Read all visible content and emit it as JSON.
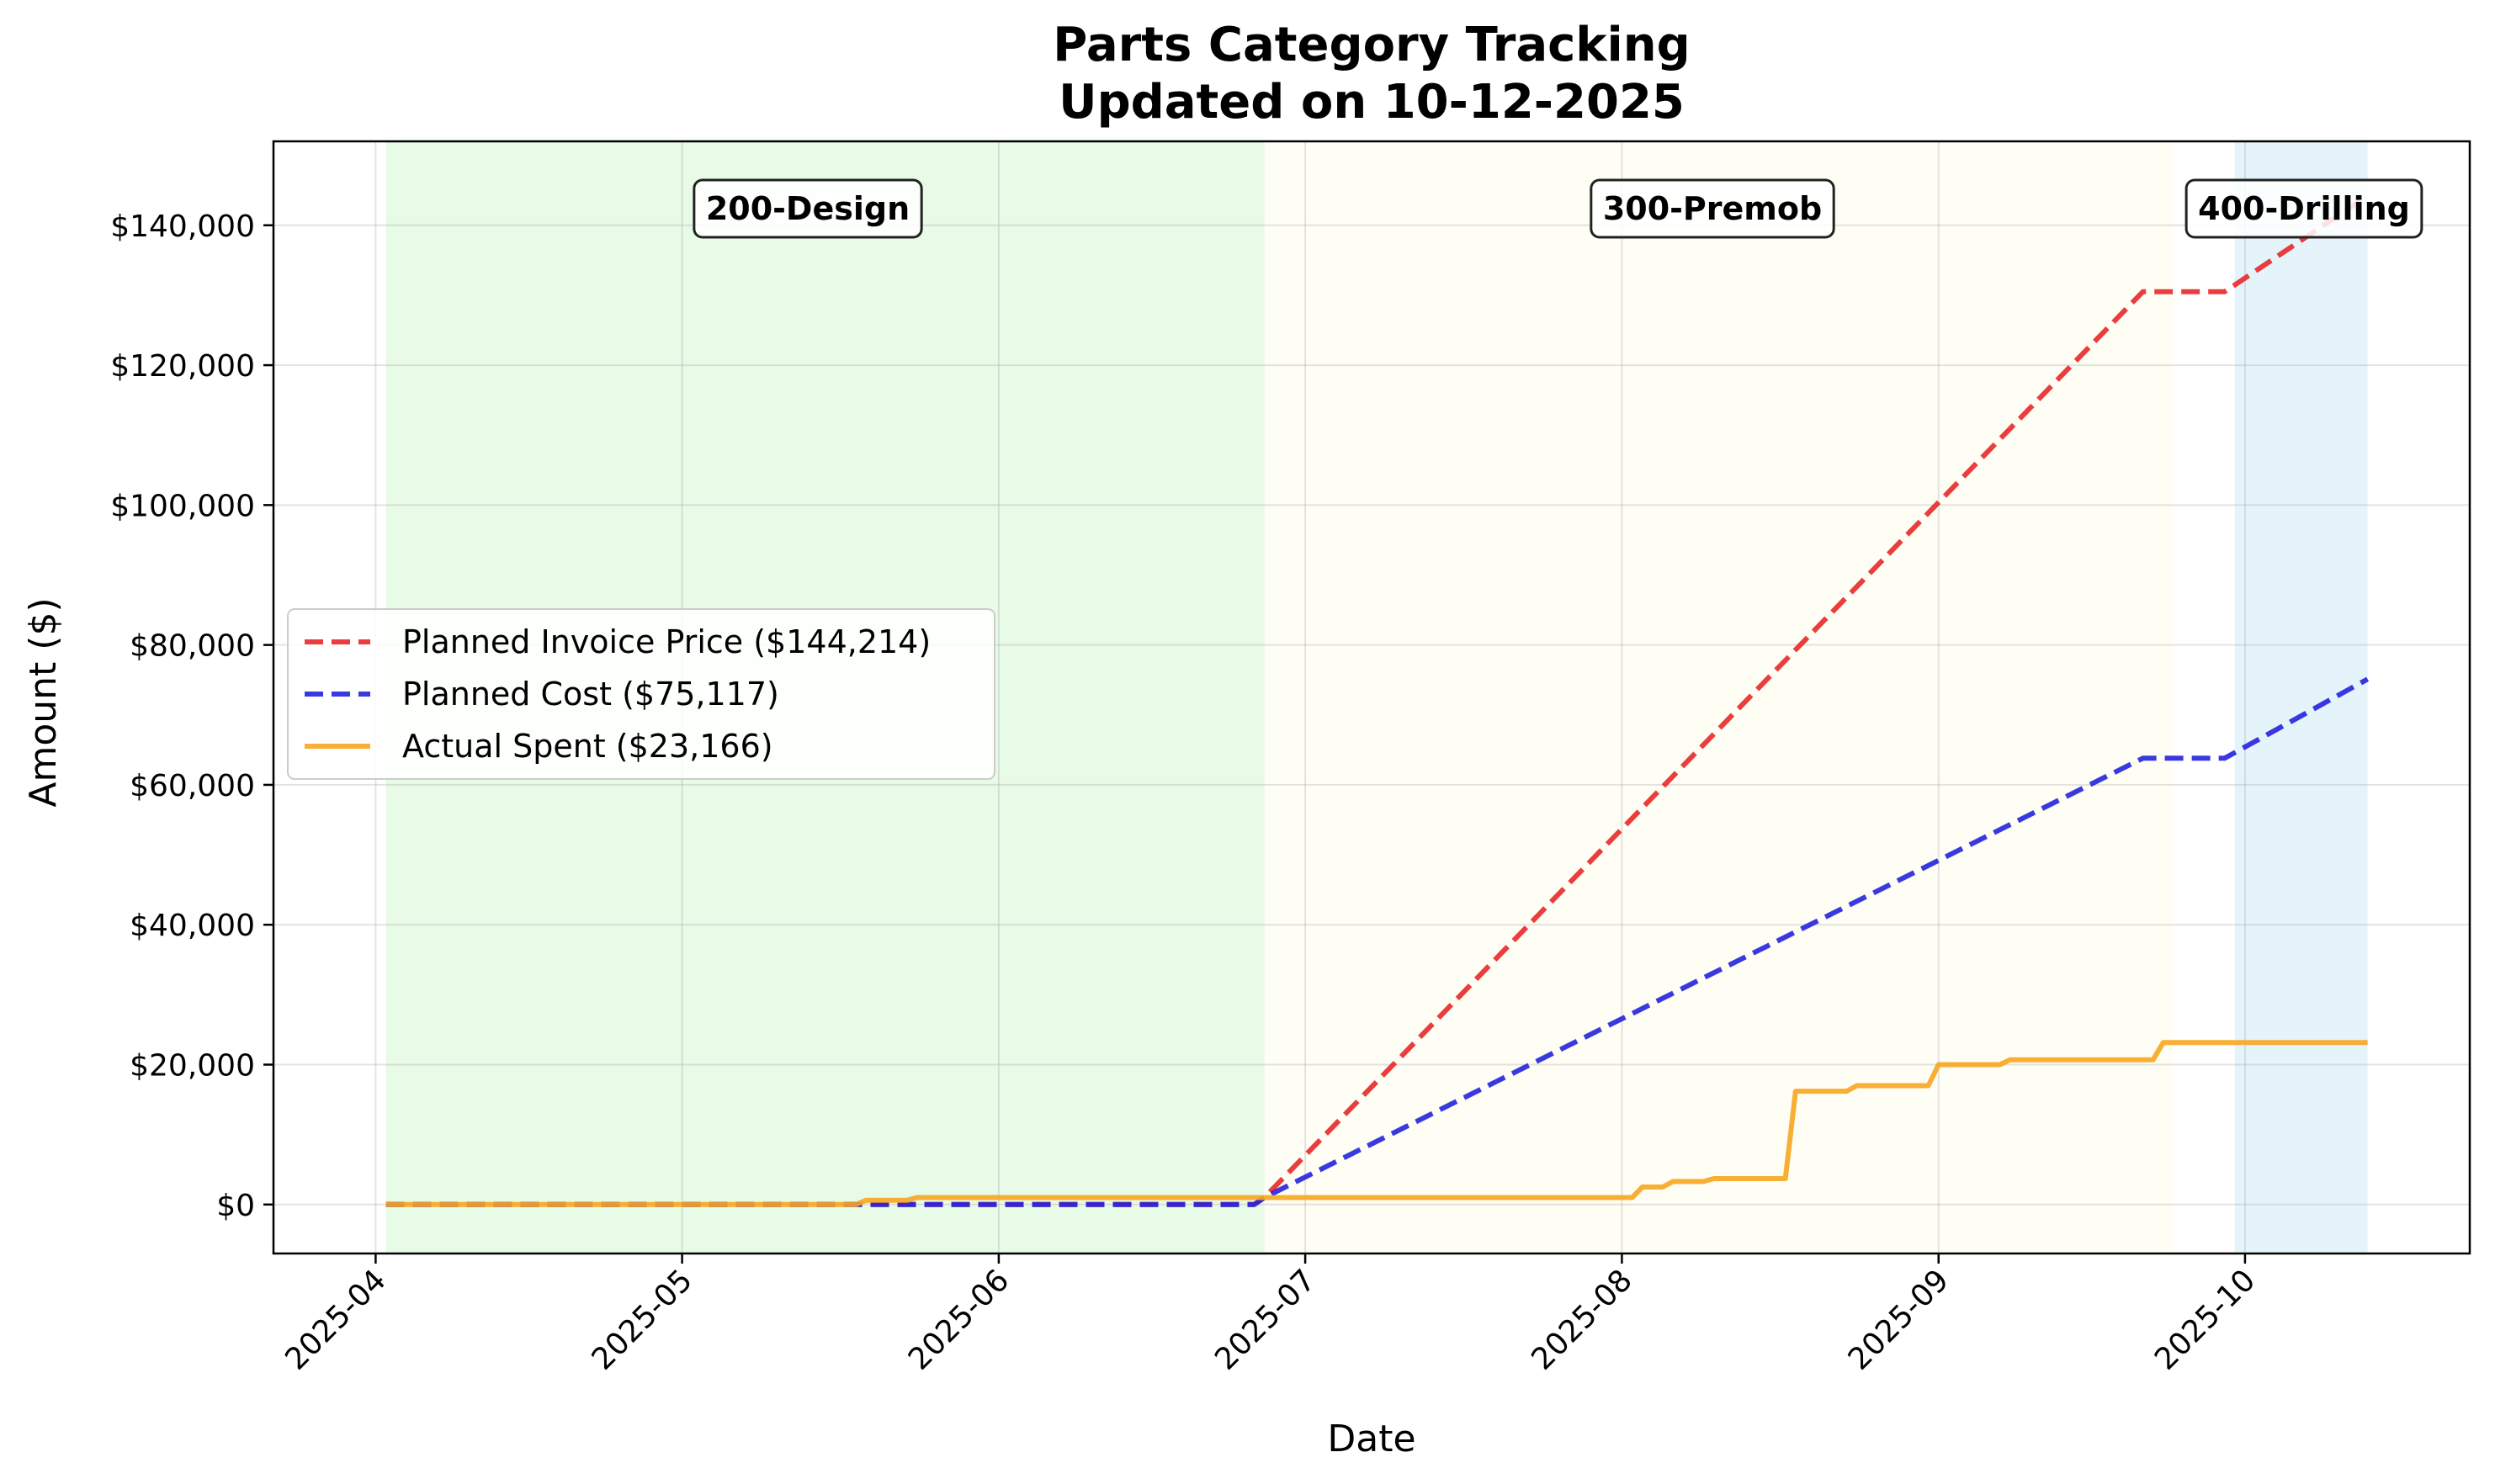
{
  "chart_data": {
    "type": "line",
    "title": "Parts Category Tracking",
    "subtitle": "Updated on 10-12-2025",
    "xlabel": "Date",
    "ylabel": "Amount ($)",
    "xlim": [
      "2025-03-22",
      "2025-10-23"
    ],
    "ylim": [
      -7000,
      152000
    ],
    "x_ticks": [
      "2025-04",
      "2025-05",
      "2025-06",
      "2025-07",
      "2025-08",
      "2025-09",
      "2025-10"
    ],
    "y_ticks": [
      0,
      20000,
      40000,
      60000,
      80000,
      100000,
      120000,
      140000
    ],
    "y_tick_labels": [
      "$0",
      "$20,000",
      "$40,000",
      "$60,000",
      "$80,000",
      "$100,000",
      "$120,000",
      "$140,000"
    ],
    "grid": true,
    "legend_position": "center-left",
    "phases": [
      {
        "label": "200-Design",
        "start": "2025-04-02",
        "end": "2025-06-27",
        "color": "#90ee90"
      },
      {
        "label": "300-Premob",
        "start": "2025-06-27",
        "end": "2025-09-24",
        "color": "#fffacd"
      },
      {
        "label": "400-Drilling",
        "start": "2025-09-30",
        "end": "2025-10-13",
        "color": "#87ceeb"
      }
    ],
    "series": [
      {
        "name": "Planned Invoice Price ($144,214)",
        "color": "#e8282a",
        "style": "dashed",
        "points": [
          [
            "2025-04-02",
            0
          ],
          [
            "2025-06-26",
            0
          ],
          [
            "2025-06-27",
            1000
          ],
          [
            "2025-09-21",
            130500
          ],
          [
            "2025-09-29",
            130500
          ],
          [
            "2025-10-13",
            144214
          ]
        ]
      },
      {
        "name": "Planned Cost ($75,117)",
        "color": "#2323e0",
        "style": "dashed",
        "points": [
          [
            "2025-04-02",
            0
          ],
          [
            "2025-06-26",
            0
          ],
          [
            "2025-06-27",
            1000
          ],
          [
            "2025-09-21",
            63800
          ],
          [
            "2025-09-29",
            63800
          ],
          [
            "2025-10-13",
            75117
          ]
        ]
      },
      {
        "name": "Actual Spent ($23,166)",
        "color": "#f7a620",
        "style": "solid",
        "points": [
          [
            "2025-04-02",
            0
          ],
          [
            "2025-05-18",
            0
          ],
          [
            "2025-05-19",
            600
          ],
          [
            "2025-05-23",
            600
          ],
          [
            "2025-05-24",
            1000
          ],
          [
            "2025-08-02",
            1000
          ],
          [
            "2025-08-03",
            2500
          ],
          [
            "2025-08-05",
            2500
          ],
          [
            "2025-08-06",
            3300
          ],
          [
            "2025-08-09",
            3300
          ],
          [
            "2025-08-10",
            3700
          ],
          [
            "2025-08-17",
            3700
          ],
          [
            "2025-08-18",
            16200
          ],
          [
            "2025-08-23",
            16200
          ],
          [
            "2025-08-24",
            17000
          ],
          [
            "2025-08-31",
            17000
          ],
          [
            "2025-09-01",
            20000
          ],
          [
            "2025-09-07",
            20000
          ],
          [
            "2025-09-08",
            20700
          ],
          [
            "2025-09-22",
            20700
          ],
          [
            "2025-09-23",
            23166
          ],
          [
            "2025-10-13",
            23166
          ]
        ]
      }
    ]
  }
}
